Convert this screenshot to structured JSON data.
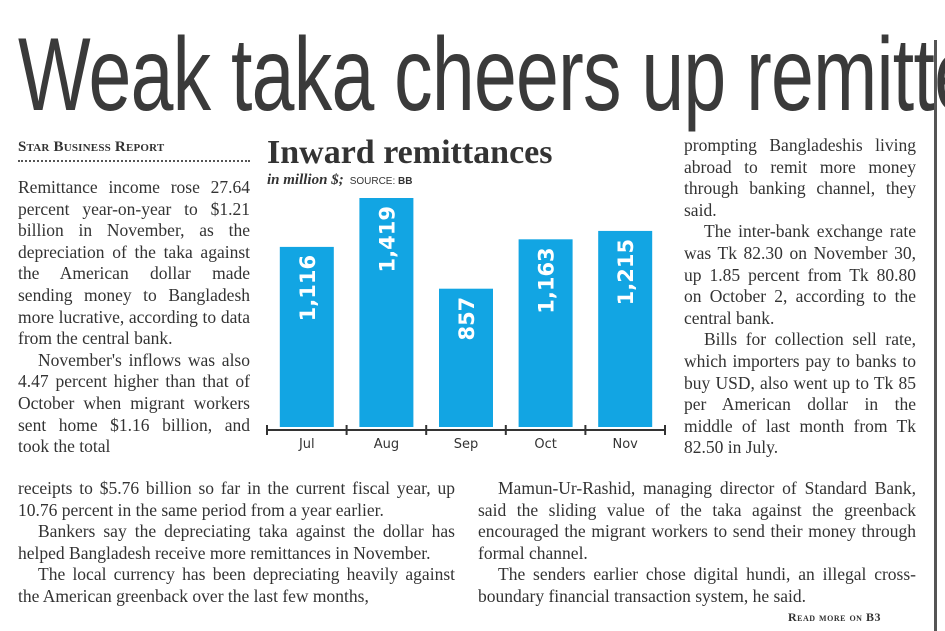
{
  "headline": "Weak taka cheers up remitters",
  "byline": "Star Business Report",
  "column_a": [
    "Remittance income rose 27.64 percent year-on-year to $1.21 billion in November, as the depreciation of the taka against the American dollar made sending money to Bangladesh more lucrative, according to data from the central bank.",
    "November's inflows was also 4.47 percent higher than that of October when migrant workers sent home $1.16 billion, and took the total"
  ],
  "column_b_left": [
    "receipts to $5.76 billion so far in the current fiscal year, up 10.76 percent in the same period from a year earlier.",
    "Bankers say the depreciating taka against the dollar has helped Bangladesh receive more remittances in November.",
    "The local currency has been depreciating heavily against the American greenback over the last few months,"
  ],
  "column_c": [
    "prompting Bangladeshis living abroad to remit more money through banking channel, they said.",
    "The inter-bank exchange rate was Tk 82.30 on November 30, up 1.85 percent from Tk 80.80 on October 2, according to the central bank.",
    "Bills for collection sell rate, which importers pay to banks to buy USD, also went up to Tk 85 per American dollar in the middle of last month from Tk 82.50 in July."
  ],
  "column_b_right": [
    "Mamun-Ur-Rashid, managing director of Standard Bank, said the sliding value of the taka against the greenback encouraged the migrant workers to send their money through formal channel.",
    "The senders earlier chose digital hundi, an illegal cross-boundary financial transaction system, he said."
  ],
  "read_more": "Read more on B3",
  "chart_data": {
    "type": "bar",
    "title": "Inward remittances",
    "subtitle": "in million $;",
    "source_label": "SOURCE:",
    "source": "BB",
    "categories": [
      "Jul",
      "Aug",
      "Sep",
      "Oct",
      "Nov"
    ],
    "values": [
      1116,
      1419,
      857,
      1163,
      1215
    ],
    "value_labels": [
      "1,116",
      "1,419",
      "857",
      "1,163",
      "1,215"
    ],
    "bar_color": "#12a5e3",
    "ylim": [
      0,
      1419
    ],
    "grid": false
  }
}
